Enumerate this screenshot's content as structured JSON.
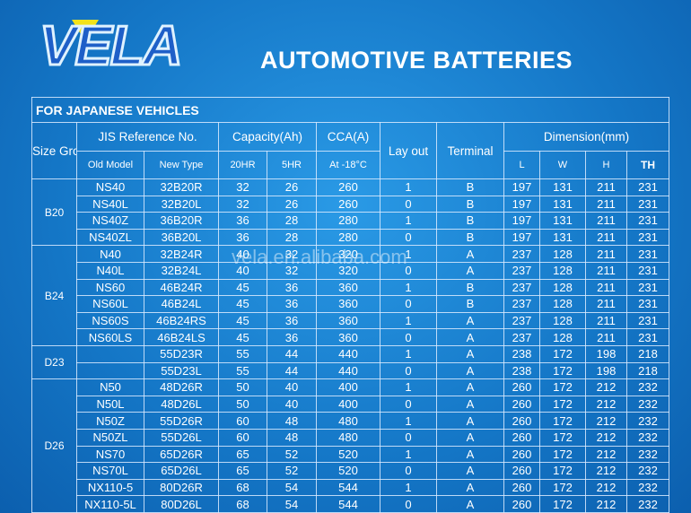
{
  "header": {
    "logo": "VELA",
    "title": "AUTOMOTIVE BATTERIES"
  },
  "watermark": "vela.en.alibaba.com",
  "table": {
    "title": "FOR JAPANESE VEHICLES",
    "head1": [
      "Size Group",
      "JIS Reference No.",
      "Capacity(Ah)",
      "CCA(A)",
      "Lay out",
      "Terminal",
      "Dimension(mm)"
    ],
    "head2": [
      "Old Model",
      "New Type",
      "20HR",
      "5HR",
      "At -18°C",
      "L",
      "W",
      "H",
      "TH"
    ],
    "groups": [
      {
        "name": "B20",
        "rows": [
          [
            "NS40",
            "32B20R",
            32,
            26,
            260,
            1,
            "B",
            197,
            131,
            211,
            231
          ],
          [
            "NS40L",
            "32B20L",
            32,
            26,
            260,
            0,
            "B",
            197,
            131,
            211,
            231
          ],
          [
            "NS40Z",
            "36B20R",
            36,
            28,
            280,
            1,
            "B",
            197,
            131,
            211,
            231
          ],
          [
            "NS40ZL",
            "36B20L",
            36,
            28,
            280,
            0,
            "B",
            197,
            131,
            211,
            231
          ]
        ]
      },
      {
        "name": "B24",
        "rows": [
          [
            "N40",
            "32B24R",
            40,
            32,
            320,
            1,
            "A",
            237,
            128,
            211,
            231
          ],
          [
            "N40L",
            "32B24L",
            40,
            32,
            320,
            0,
            "A",
            237,
            128,
            211,
            231
          ],
          [
            "NS60",
            "46B24R",
            45,
            36,
            360,
            1,
            "B",
            237,
            128,
            211,
            231
          ],
          [
            "NS60L",
            "46B24L",
            45,
            36,
            360,
            0,
            "B",
            237,
            128,
            211,
            231
          ],
          [
            "NS60S",
            "46B24RS",
            45,
            36,
            360,
            1,
            "A",
            237,
            128,
            211,
            231
          ],
          [
            "NS60LS",
            "46B24LS",
            45,
            36,
            360,
            0,
            "A",
            237,
            128,
            211,
            231
          ]
        ]
      },
      {
        "name": "D23",
        "rows": [
          [
            null,
            "55D23R",
            55,
            44,
            440,
            1,
            "A",
            238,
            172,
            198,
            218
          ],
          [
            null,
            "55D23L",
            55,
            44,
            440,
            0,
            "A",
            238,
            172,
            198,
            218
          ]
        ]
      },
      {
        "name": "D26",
        "rows": [
          [
            "N50",
            "48D26R",
            50,
            40,
            400,
            1,
            "A",
            260,
            172,
            212,
            232
          ],
          [
            "N50L",
            "48D26L",
            50,
            40,
            400,
            0,
            "A",
            260,
            172,
            212,
            232
          ],
          [
            "N50Z",
            "55D26R",
            60,
            48,
            480,
            1,
            "A",
            260,
            172,
            212,
            232
          ],
          [
            "N50ZL",
            "55D26L",
            60,
            48,
            480,
            0,
            "A",
            260,
            172,
            212,
            232
          ],
          [
            "NS70",
            "65D26R",
            65,
            52,
            520,
            1,
            "A",
            260,
            172,
            212,
            232
          ],
          [
            "NS70L",
            "65D26L",
            65,
            52,
            520,
            0,
            "A",
            260,
            172,
            212,
            232
          ],
          [
            "NX110-5",
            "80D26R",
            68,
            54,
            544,
            1,
            "A",
            260,
            172,
            212,
            232
          ],
          [
            "NX110-5L",
            "80D26L",
            68,
            54,
            544,
            0,
            "A",
            260,
            172,
            212,
            232
          ]
        ]
      }
    ]
  }
}
